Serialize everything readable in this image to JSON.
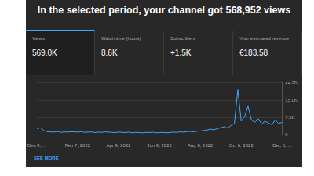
{
  "header": {
    "title": "In the selected period, your channel got 568,952 views"
  },
  "cards": [
    {
      "label": "Views",
      "value": "569.0K"
    },
    {
      "label": "Watch time (hours)",
      "value": "8.6K"
    },
    {
      "label": "Subscribers",
      "value": "+1.5K"
    },
    {
      "label": "Your estimated revenue",
      "value": "€183.58"
    }
  ],
  "chart_data": {
    "type": "line",
    "categories": [
      "Dec 8, ...",
      null,
      null,
      null,
      null,
      null,
      null,
      null,
      null,
      null,
      null,
      null,
      "Feb 7, 2022",
      null,
      null,
      null,
      null,
      null,
      null,
      null,
      null,
      null,
      null,
      null,
      "Apr 9, 2022",
      null,
      null,
      null,
      null,
      null,
      null,
      null,
      null,
      null,
      null,
      null,
      "Jun 9, 2022",
      null,
      null,
      null,
      null,
      null,
      null,
      null,
      null,
      null,
      null,
      null,
      "Aug 8, 2022",
      null,
      null,
      null,
      null,
      null,
      null,
      null,
      null,
      null,
      null,
      null,
      "Oct 6, 2022",
      null,
      null,
      null,
      null,
      null,
      null,
      null,
      null,
      null,
      null,
      null,
      "Dec 6, ..."
    ],
    "values": [
      2800,
      3200,
      2000,
      1500,
      1400,
      1300,
      1600,
      1200,
      1400,
      1300,
      1500,
      1400,
      1300,
      1500,
      1200,
      1300,
      1400,
      1100,
      1300,
      1200,
      1400,
      1300,
      1200,
      1100,
      1300,
      1200,
      1100,
      1300,
      1000,
      1200,
      1100,
      1000,
      1200,
      1100,
      1300,
      1000,
      1100,
      1200,
      1000,
      1100,
      1300,
      1200,
      1400,
      1300,
      1500,
      1600,
      1400,
      1700,
      1800,
      2000,
      2200,
      2600,
      2300,
      2800,
      3200,
      3600,
      3000,
      4200,
      5000,
      19500,
      6000,
      8000,
      12500,
      6500,
      5500,
      7000,
      4800,
      6000,
      5200,
      4500,
      6500,
      5000,
      5500
    ],
    "color": "#3ea6ff",
    "ylim": [
      0,
      22500
    ],
    "yticks": [
      0,
      {
        "value": 7500,
        "label": "7.5K"
      },
      {
        "value": 15000,
        "label": "15.0K"
      },
      {
        "value": 22500,
        "label": "22.5K"
      }
    ],
    "grid": true
  },
  "footer": {
    "link": "SEE MORE"
  }
}
